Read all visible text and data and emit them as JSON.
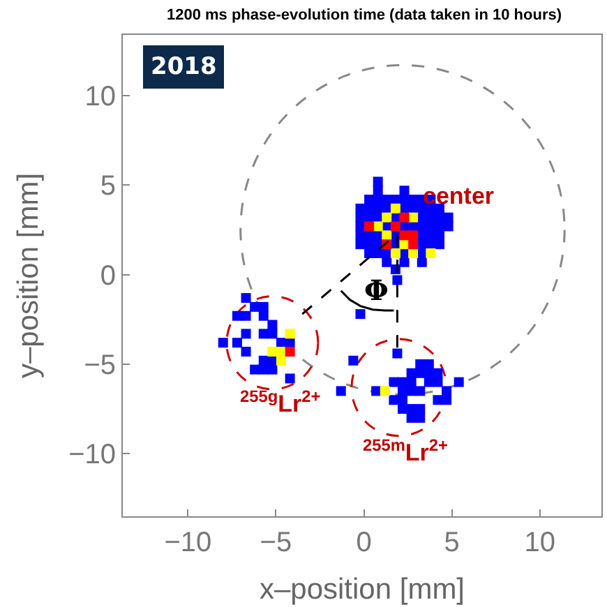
{
  "chart_data": {
    "type": "scatter",
    "title": "1200 ms phase-evolution time (data taken in 10 hours)",
    "xlabel": "x–position [mm]",
    "ylabel": "y–position [mm]",
    "xlim": [
      -13.7,
      13.5
    ],
    "ylim": [
      -13.5,
      13.4
    ],
    "xticks": [
      {
        "value": -10,
        "label": "−10"
      },
      {
        "value": -5,
        "label": "−5"
      },
      0,
      5,
      10
    ],
    "yticks": [
      {
        "value": -10,
        "label": "−10"
      },
      {
        "value": -5,
        "label": "−5"
      },
      0,
      5,
      10
    ],
    "grid": false,
    "marker": "square",
    "series": [
      {
        "color": "#0000ff",
        "x": [
          0.8,
          0.8,
          2.3,
          0.3,
          0.8,
          1.3,
          1.8,
          2.3,
          2.8,
          3.3,
          3.8,
          -0.2,
          0.3,
          0.8,
          1.3,
          2.3,
          2.8,
          3.3,
          3.8,
          4.3,
          -0.2,
          0.3,
          0.8,
          1.8,
          3.3,
          3.8,
          4.3,
          4.8,
          -0.2,
          1.3,
          2.3,
          2.8,
          3.3,
          3.8,
          4.3,
          4.8,
          -0.2,
          0.3,
          0.8,
          1.8,
          3.3,
          3.8,
          4.3,
          -0.2,
          0.3,
          0.8,
          1.8,
          3.3,
          3.8,
          4.3,
          0.3,
          0.8,
          1.3,
          2.3,
          3.3,
          1.3,
          2.3,
          3.3,
          1.8,
          1.9,
          -6.7,
          -6.2,
          -5.7,
          -7.2,
          -6.7,
          -5.7,
          -5.2,
          -6.7,
          -5.7,
          -5.2,
          -8.0,
          -7.2,
          -4.7,
          -4.2,
          -6.7,
          -5.7,
          -5.2,
          -6.2,
          -5.7,
          -5.2,
          -4.2,
          -0.2,
          -0.6,
          -1.3,
          1.9,
          3.2,
          3.7,
          2.7,
          3.2,
          3.7,
          4.2,
          1.7,
          2.2,
          2.7,
          3.7,
          4.2,
          5.4,
          0.7,
          2.2,
          2.7,
          3.2,
          4.7,
          1.7,
          2.2,
          4.2,
          4.7,
          2.2,
          2.7,
          3.2,
          2.7,
          3.2
        ],
        "values": [
          5.2,
          4.7,
          4.7,
          4.2,
          4.2,
          4.2,
          4.2,
          4.2,
          4.2,
          4.2,
          4.2,
          3.7,
          3.7,
          3.7,
          3.7,
          3.7,
          3.7,
          3.7,
          3.7,
          3.7,
          3.2,
          3.2,
          3.2,
          3.2,
          3.2,
          3.2,
          3.2,
          3.2,
          2.7,
          2.7,
          2.7,
          2.7,
          2.7,
          2.7,
          2.7,
          2.7,
          2.2,
          2.2,
          2.2,
          2.2,
          2.2,
          2.2,
          2.2,
          1.7,
          1.7,
          1.7,
          1.7,
          1.7,
          1.7,
          1.7,
          1.2,
          1.2,
          1.2,
          1.2,
          1.2,
          0.7,
          0.7,
          0.7,
          0.3,
          -0.3,
          -1.3,
          -1.8,
          -1.8,
          -2.3,
          -2.3,
          -2.3,
          -2.8,
          -3.3,
          -3.3,
          -3.3,
          -3.8,
          -3.8,
          -3.8,
          -3.8,
          -4.3,
          -4.8,
          -4.8,
          -5.3,
          -5.3,
          -5.3,
          -5.8,
          -2.2,
          -4.8,
          -6.5,
          -4.4,
          -5.0,
          -5.0,
          -5.5,
          -5.5,
          -5.5,
          -5.5,
          -6.0,
          -6.0,
          -6.0,
          -6.0,
          -6.0,
          -6.0,
          -6.5,
          -6.5,
          -6.5,
          -6.5,
          -6.5,
          -7.0,
          -7.0,
          -7.0,
          -7.0,
          -7.5,
          -7.5,
          -7.5,
          -8.0,
          -8.0
        ]
      },
      {
        "color": "#ffff00",
        "x": [
          1.3,
          1.8,
          2.8,
          1.3,
          0.8,
          2.3,
          1.8,
          2.8,
          3.8,
          -5.2,
          -4.7,
          -4.2,
          -4.7,
          1.2
        ],
        "values": [
          3.2,
          3.7,
          3.2,
          2.2,
          2.7,
          1.7,
          1.2,
          1.2,
          1.2,
          -4.3,
          -4.3,
          -3.3,
          -4.8,
          -6.5
        ]
      },
      {
        "color": "#ff0000",
        "x": [
          1.8,
          2.3,
          0.3,
          2.3,
          2.8,
          2.8,
          1.3,
          -4.2
        ],
        "values": [
          2.7,
          3.2,
          2.7,
          2.2,
          2.2,
          1.7,
          1.7,
          -4.3
        ]
      },
      {
        "type": "line",
        "marker": "none",
        "color": "#000000",
        "line_style": "dashed",
        "x": [
          -3.5,
          1.9,
          1.9
        ],
        "values": [
          -2.2,
          2.3,
          -4.3
        ]
      },
      {
        "type": "line",
        "marker": "none",
        "color": "#000000",
        "line_style": "solid",
        "x": [
          -1.3,
          -0.8,
          -0.2,
          0.5,
          1.2,
          1.7
        ],
        "values": [
          -0.9,
          -1.4,
          -1.75,
          -1.95,
          -2.0,
          -2.0
        ]
      }
    ],
    "annotations": [
      "2018",
      "center",
      "$^{255g}$Lr$^{2+}$",
      "$^{255m}$Lr$^{2+}$",
      "Φ"
    ]
  }
}
